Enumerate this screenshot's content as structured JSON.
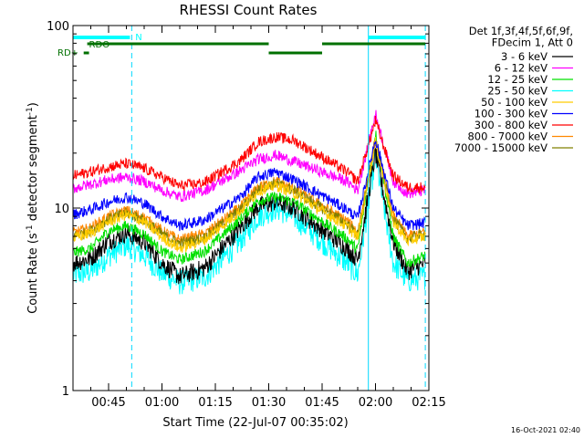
{
  "chart_data": {
    "type": "line",
    "title": "RHESSI Count Rates",
    "xlabel": "Start Time (22-Jul-07 00:35:02)",
    "ylabel": "Count Rate (s",
    "ylabel_sup": "-1",
    "ylabel_tail": " detector segment",
    "ylabel_sup2": "-1",
    "ylabel_close": ")",
    "y_scale": "log",
    "ylim": [
      1,
      100
    ],
    "xlim_minutes_after_0035": [
      0,
      100
    ],
    "x_ticks": [
      {
        "label": "00:45",
        "t": 10
      },
      {
        "label": "01:00",
        "t": 25
      },
      {
        "label": "01:15",
        "t": 40
      },
      {
        "label": "01:30",
        "t": 55
      },
      {
        "label": "01:45",
        "t": 70
      },
      {
        "label": "02:00",
        "t": 85
      },
      {
        "label": "02:15",
        "t": 100
      }
    ],
    "y_ticks": [
      {
        "label": "1",
        "v": 1
      },
      {
        "label": "10",
        "v": 10
      },
      {
        "label": "100",
        "v": 100
      }
    ],
    "legend_header": [
      "Det 1f,3f,4f,5f,6f,9f,",
      "FDecim 1, Att 0"
    ],
    "series": [
      {
        "name": "3 - 6 keV",
        "color": "#000000",
        "values": [
          5.0,
          5.3,
          6.6,
          7.3,
          6.5,
          5.0,
          4.2,
          4.7,
          7.8,
          10.2,
          10.8,
          10.0,
          6.0,
          5.2,
          20.0,
          6.5,
          4.5,
          5.0
        ]
      },
      {
        "name": "6 - 12 keV",
        "color": "#ff00ff",
        "values": [
          12.8,
          13.5,
          14.3,
          14.8,
          14.0,
          12.5,
          11.5,
          12.5,
          16.0,
          18.5,
          19.5,
          18.0,
          14.0,
          12.5,
          33.0,
          14.0,
          12.0,
          12.5
        ]
      },
      {
        "name": "12 - 25 keV",
        "color": "#00e000",
        "values": [
          5.7,
          6.0,
          7.5,
          8.0,
          7.2,
          5.8,
          5.2,
          5.8,
          8.7,
          11.0,
          11.5,
          10.8,
          6.8,
          5.9,
          26.0,
          7.0,
          5.0,
          5.5
        ]
      },
      {
        "name": "25 - 50 keV",
        "color": "#00ffff",
        "values": [
          4.3,
          4.5,
          5.5,
          6.3,
          5.5,
          4.4,
          3.9,
          4.2,
          6.6,
          9.0,
          10.0,
          9.0,
          5.0,
          4.3,
          19.0,
          5.0,
          4.0,
          4.2
        ]
      },
      {
        "name": "50 - 100 keV",
        "color": "#ffcc00",
        "values": [
          6.8,
          7.3,
          8.4,
          9.2,
          8.4,
          6.9,
          6.0,
          6.7,
          9.6,
          12.4,
          13.3,
          12.1,
          7.9,
          6.9,
          23.0,
          8.4,
          6.6,
          7.0
        ]
      },
      {
        "name": "100 - 300 keV",
        "color": "#0000ff",
        "values": [
          9.2,
          9.8,
          10.8,
          11.5,
          10.6,
          9.0,
          8.0,
          8.6,
          11.5,
          14.8,
          15.8,
          14.3,
          9.8,
          8.8,
          24.0,
          10.0,
          8.0,
          8.3
        ]
      },
      {
        "name": "300 - 800 keV",
        "color": "#ff0000",
        "values": [
          15.0,
          15.8,
          16.8,
          17.5,
          16.5,
          14.8,
          13.2,
          13.8,
          18.2,
          23.0,
          24.5,
          23.5,
          15.8,
          14.0,
          30.0,
          15.0,
          13.0,
          13.0
        ]
      },
      {
        "name": "800 - 7000 keV",
        "color": "#ff8800",
        "values": [
          7.3,
          7.8,
          9.0,
          9.7,
          8.9,
          7.5,
          6.7,
          7.2,
          10.1,
          13.0,
          14.0,
          12.8,
          8.5,
          7.4,
          23.5,
          9.0,
          7.0,
          7.4
        ]
      },
      {
        "name": "7000 - 15000 keV",
        "color": "#808000",
        "values": [
          7.0,
          7.5,
          8.7,
          9.4,
          8.6,
          7.2,
          6.4,
          6.9,
          9.8,
          12.7,
          13.7,
          12.5,
          8.2,
          7.1,
          23.0,
          8.7,
          6.8,
          7.2
        ]
      }
    ],
    "x_series_minutes": [
      0,
      5,
      10,
      15,
      20,
      25,
      30,
      37,
      47,
      52,
      57,
      62,
      77,
      80,
      85,
      90,
      94,
      99
    ],
    "intervals": {
      "vertical_lines_cyan_solid_t": [
        0,
        83
      ],
      "vertical_lines_cyan_dashed_t": [
        16.5,
        99
      ]
    },
    "flags": {
      "n_label": "N",
      "rdo_label": "RDO",
      "rdplus_label": "RD+",
      "night_segments_t": [
        [
          0,
          16
        ],
        [
          83,
          99
        ]
      ],
      "rdo_segments_t": [
        [
          4,
          55
        ],
        [
          55,
          70
        ],
        [
          70,
          99
        ]
      ],
      "rdplus_segment_t": [
        [
          3,
          4.5
        ]
      ]
    },
    "grid": false,
    "legend_placement": "right"
  },
  "timestamp": "16-Oct-2021 02:40"
}
